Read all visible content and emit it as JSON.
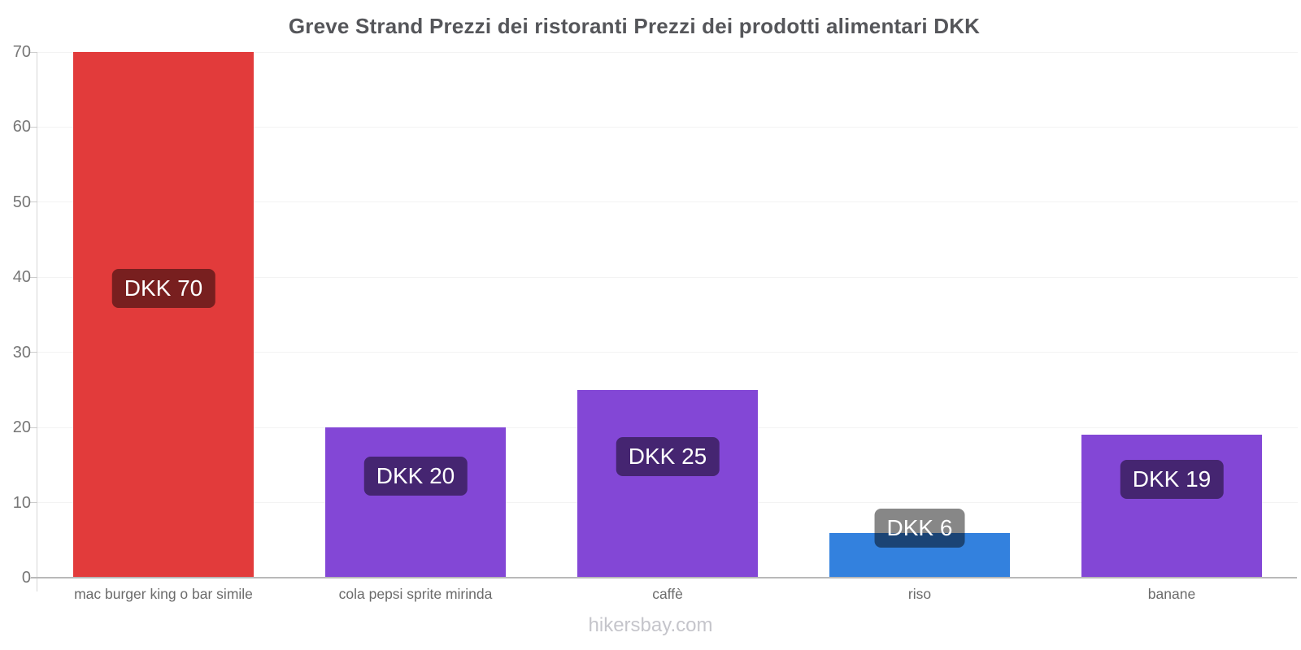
{
  "chart_data": {
    "type": "bar",
    "title": "Greve Strand Prezzi dei ristoranti Prezzi dei prodotti alimentari DKK",
    "categories": [
      "mac burger king o bar simile",
      "cola pepsi sprite mirinda",
      "caffè",
      "riso",
      "banane"
    ],
    "values": [
      70,
      20,
      25,
      6,
      19
    ],
    "bar_labels": [
      "DKK 70",
      "DKK 20",
      "DKK 25",
      "DKK 6",
      "DKK 19"
    ],
    "bar_colors": [
      "#e23b3b",
      "#8347d6",
      "#8347d6",
      "#3381de",
      "#8347d6"
    ],
    "currency": "DKK",
    "xlabel": "",
    "ylabel": "",
    "ylim": [
      0,
      70
    ],
    "yticks": [
      0,
      10,
      20,
      30,
      40,
      50,
      60,
      70
    ],
    "grid": true,
    "legend": false
  },
  "footer": {
    "text": "hikersbay.com"
  },
  "colors": {
    "badge_bg": "rgba(0,0,0,0.47)",
    "badge_text": "#ffffff",
    "title_text": "#55565a",
    "tick_text": "#767676",
    "x_label_text": "#6b6b6b",
    "footer_text": "#c5c5cb",
    "gridline": "#f3f3f3",
    "axis_line": "#d6d6d6",
    "baseline": "#b9b9b9",
    "background": "#ffffff"
  }
}
